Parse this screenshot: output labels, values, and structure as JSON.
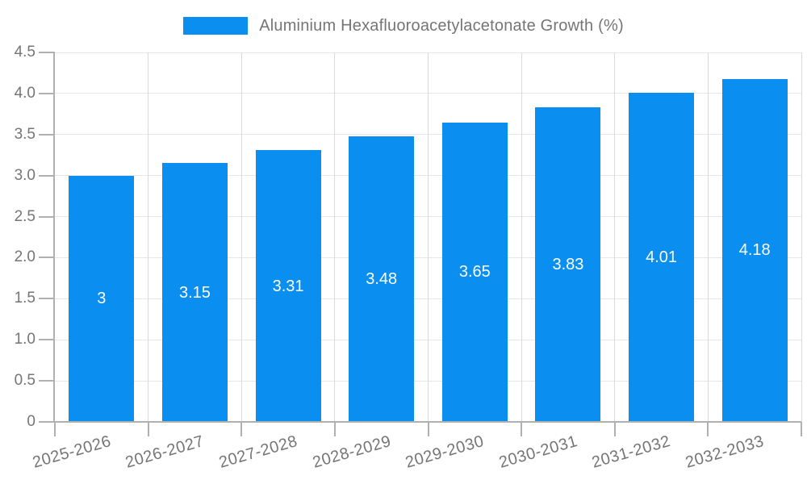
{
  "chart_data": {
    "type": "bar",
    "title": "Aluminium Hexafluoroacetylacetonate Growth (%)",
    "categories": [
      "2025-2026",
      "2026-2027",
      "2027-2028",
      "2028-2029",
      "2029-2030",
      "2030-2031",
      "2031-2032",
      "2032-2033"
    ],
    "values": [
      3,
      3.15,
      3.31,
      3.48,
      3.65,
      3.83,
      4.01,
      4.18
    ],
    "value_labels": [
      "3",
      "3.15",
      "3.31",
      "3.48",
      "3.65",
      "3.83",
      "4.01",
      "4.18"
    ],
    "xlabel": "",
    "ylabel": "",
    "ylim": [
      0,
      4.5
    ],
    "y_ticks": [
      "0",
      "0.5",
      "1.0",
      "1.5",
      "2.0",
      "2.5",
      "3.0",
      "3.5",
      "4.0",
      "4.5"
    ],
    "grid": true,
    "legend_position": "top",
    "value_label_position": "inside-middle"
  },
  "legend": {
    "label": "Aluminium Hexafluoroacetylacetonate Growth (%)"
  },
  "colors": {
    "bar": "#0a8ff0",
    "label_text": "#757575",
    "bar_label_text": "#ffffff",
    "grid_h": "#e6e6e6",
    "grid_v": "#d9d9d9",
    "axis": "#b0b0b0"
  }
}
